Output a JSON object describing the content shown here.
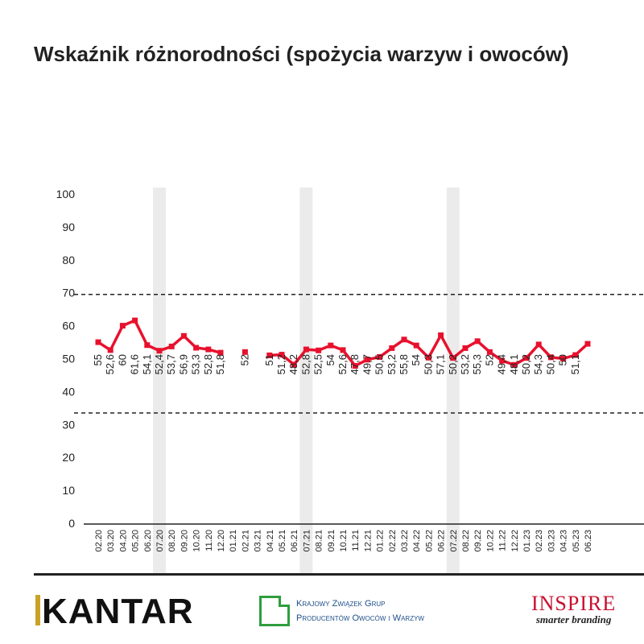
{
  "title": "Wskaźnik różnorodności (spożycia warzyw i owoców)",
  "colors": {
    "series": "#e8112d",
    "axis": "#222222",
    "band": "#ebebeb"
  },
  "chart_data": {
    "type": "line",
    "title": "Wskaźnik różnorodności (spożycia warzyw i owoców)",
    "xlabel": "",
    "ylabel": "",
    "ylim": [
      0,
      100
    ],
    "yticks": [
      0,
      10,
      20,
      30,
      40,
      50,
      60,
      70,
      80,
      90,
      100
    ],
    "reference_lines": [
      69.5,
      33.5
    ],
    "shaded_categories": [
      "07.20",
      "07.21",
      "07.22"
    ],
    "categories": [
      "02.20",
      "03.20",
      "04.20",
      "05.20",
      "06.20",
      "07.20",
      "08.20",
      "09.20",
      "10.20",
      "11.20",
      "12.20",
      "01.21",
      "02.21",
      "03.21",
      "04.21",
      "05.21",
      "06.21",
      "07.21",
      "08.21",
      "09.21",
      "10.21",
      "11.21",
      "12.21",
      "01.22",
      "02.22",
      "03.22",
      "04.22",
      "05.22",
      "06.22",
      "07.22",
      "08.22",
      "09.22",
      "10.22",
      "11.22",
      "12.22",
      "01.23",
      "02.23",
      "03.23",
      "04.23",
      "05.23",
      "06.23"
    ],
    "series": [
      {
        "values": [
          55,
          52.6,
          60,
          61.6,
          54.1,
          52.4,
          53.7,
          56.9,
          53.3,
          52.8,
          51.8,
          null,
          52,
          null,
          51,
          51.2,
          48.2,
          52.8,
          52.5,
          54,
          52.6,
          47.8,
          49.7,
          50.5,
          53.2,
          55.8,
          54,
          50.3,
          57.1,
          50.2,
          53.2,
          55.3,
          52,
          49.4,
          48.1,
          50.2,
          54.3,
          50.4,
          50,
          51.1,
          54.5
        ],
        "labels": [
          "55",
          "52,6",
          "60",
          "61,6",
          "54,1",
          "52,4",
          "53,7",
          "56,9",
          "53,3",
          "52,8",
          "51,8",
          "",
          "52",
          "",
          "51",
          "51,2",
          "48,2",
          "52,8",
          "52,5",
          "54",
          "52,6",
          "47,8",
          "49,7",
          "50,5",
          "53,2",
          "55,8",
          "54",
          "50,3",
          "57,1",
          "50,2",
          "53,2",
          "55,3",
          "52",
          "49,4",
          "48,1",
          "50,2",
          "54,3",
          "50,4",
          "50",
          "51,1",
          ""
        ]
      }
    ],
    "grid": false,
    "legend": "none"
  },
  "footer": {
    "kantar": "KANTAR",
    "kzg_line1": "Krajowy Związek Grup",
    "kzg_line2": "Producentów Owoców i Warzyw",
    "inspire_name": "INSPIRE",
    "inspire_tagline": "smarter branding"
  }
}
